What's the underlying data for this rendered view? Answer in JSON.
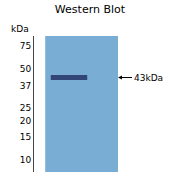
{
  "chart_data": {
    "type": "blot",
    "title": "Western Blot",
    "ylabel": "kDa",
    "log": "y",
    "ylim": [
      8,
      90
    ],
    "yticks": [
      75,
      50,
      37,
      25,
      20,
      15,
      10
    ],
    "grid": false,
    "tick_labels": "y",
    "data_labels": true,
    "series": [
      {
        "type": "lane",
        "color": "#7aadd4"
      },
      {
        "type": "band",
        "color": "#2a3a6e",
        "values": [
          43
        ],
        "value_labels": [
          "43kDa"
        ]
      }
    ]
  }
}
